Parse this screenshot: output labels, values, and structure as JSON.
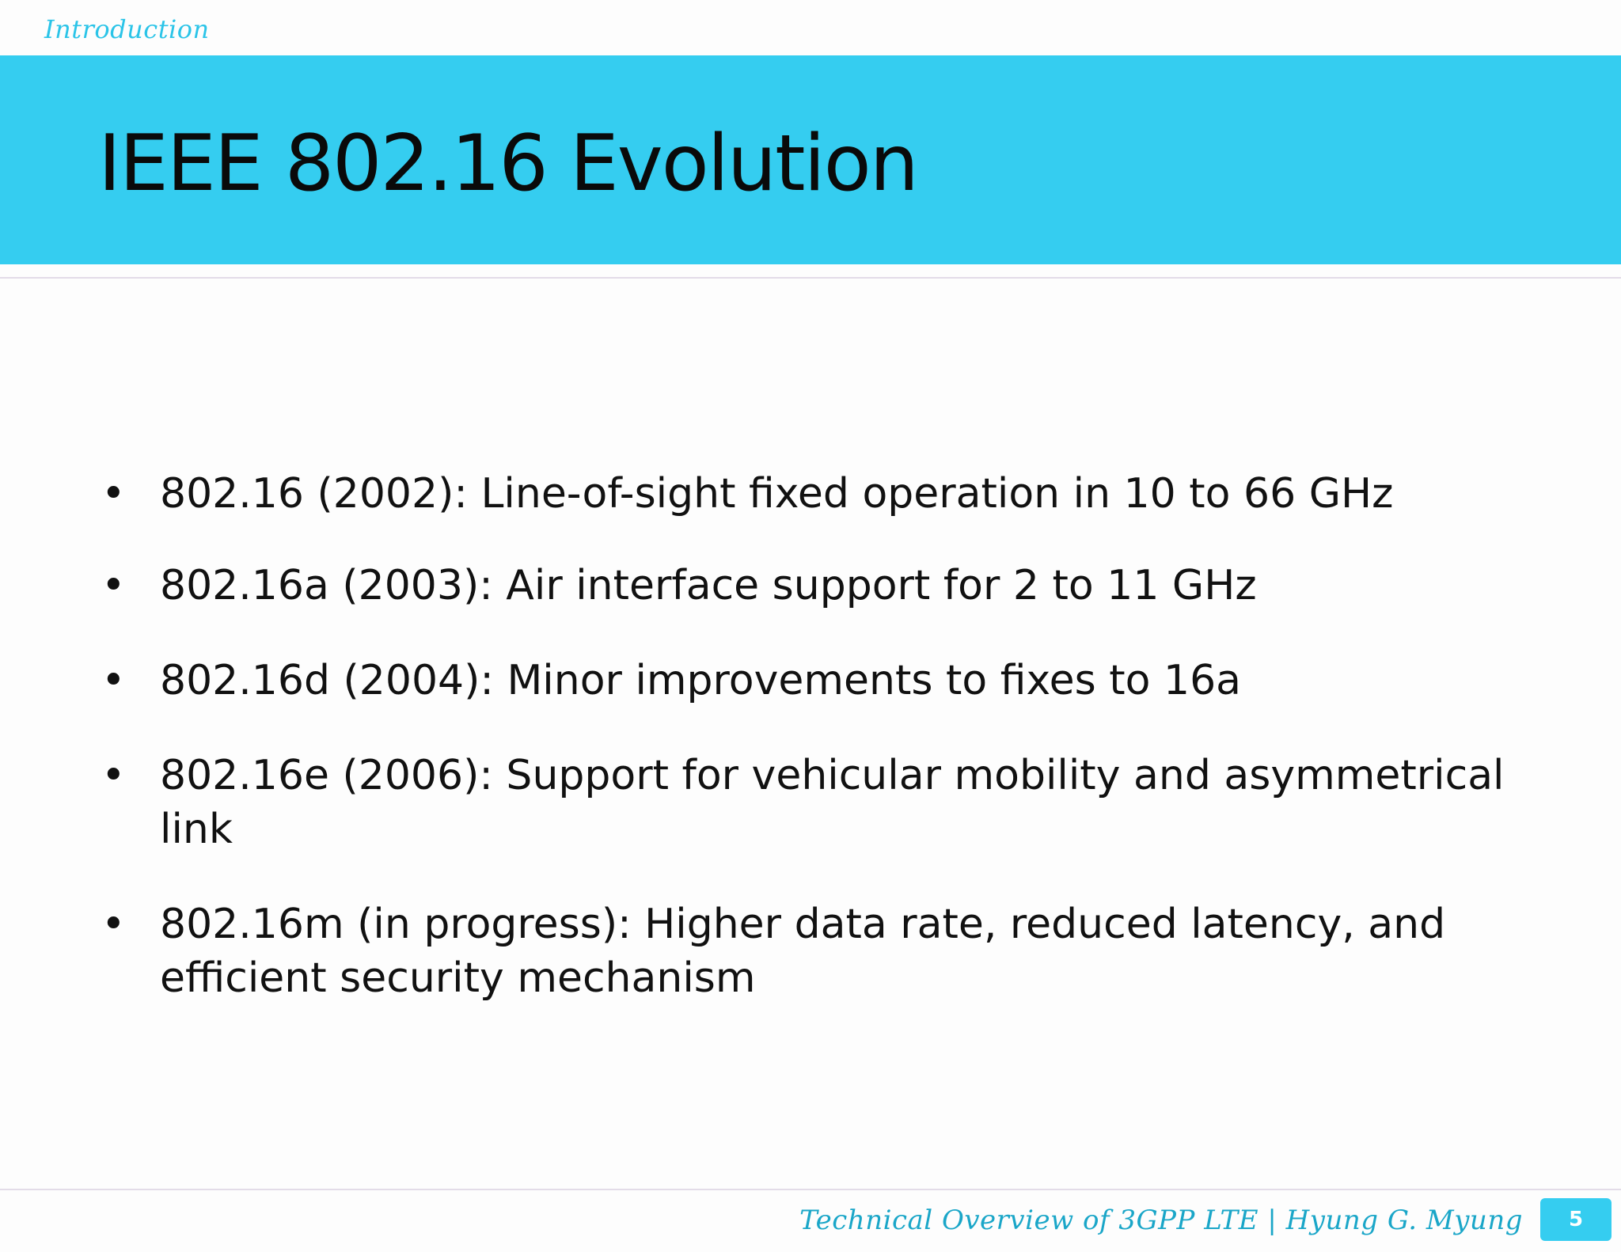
{
  "header": {
    "section": "Introduction",
    "title": "IEEE 802.16 Evolution"
  },
  "content": {
    "bullets": [
      "802.16 (2002): Line-of-sight fixed operation in 10 to 66 GHz",
      "802.16a (2003): Air interface support for 2 to 11 GHz",
      "802.16d (2004): Minor improvements to fixes to 16a",
      "802.16e (2006): Support for vehicular mobility and asymmetrical link",
      "802.16m (in progress): Higher data rate, reduced latency, and efficient security mechanism"
    ]
  },
  "footer": {
    "text": "Technical Overview of 3GPP LTE | Hyung G. Myung",
    "page": "5"
  },
  "colors": {
    "accent": "#35cdf0",
    "footer_text": "#1aa6c8"
  }
}
